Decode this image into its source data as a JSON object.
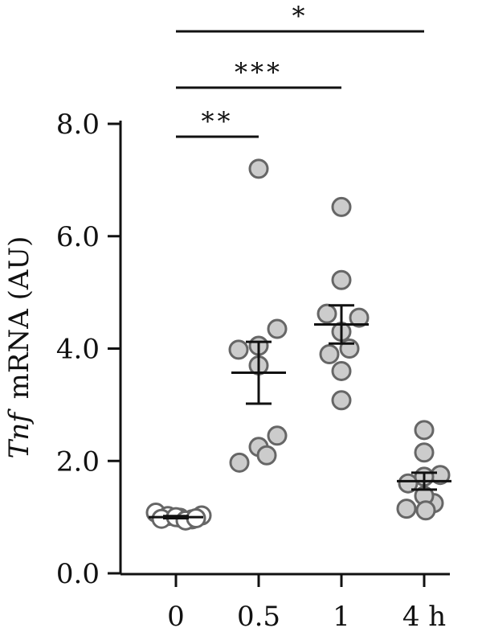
{
  "chart_data": {
    "type": "scatter",
    "ylabel_italic": "Tnf",
    "ylabel_rest": "mRNA (AU)",
    "ylim": [
      0,
      8
    ],
    "y_ticks": [
      "0.0",
      "2.0",
      "4.0",
      "6.0",
      "8.0"
    ],
    "categories": [
      "0",
      "0.5",
      "1",
      "4 h"
    ],
    "series": [
      {
        "category": "0",
        "points": [
          1.08,
          1.02,
          0.99,
          0.96,
          1.03,
          0.97,
          1.0,
          0.94,
          0.98
        ],
        "mean": 1.0,
        "sem": 0.02
      },
      {
        "category": "0.5",
        "points": [
          7.2,
          4.35,
          3.98,
          4.05,
          3.7,
          2.45,
          2.25,
          2.1,
          1.97
        ],
        "mean": 3.57,
        "sem": 0.55
      },
      {
        "category": "1",
        "points": [
          6.52,
          5.22,
          4.62,
          4.55,
          4.3,
          3.9,
          4.0,
          3.6,
          3.08
        ],
        "mean": 4.43,
        "sem": 0.34
      },
      {
        "category": "4 h",
        "points": [
          2.55,
          2.15,
          1.75,
          1.6,
          1.72,
          1.25,
          1.38,
          1.12,
          1.15
        ],
        "mean": 1.64,
        "sem": 0.15
      }
    ],
    "significance": [
      {
        "from": "0",
        "to": "0.5",
        "label": "**"
      },
      {
        "from": "0",
        "to": "1",
        "label": "***"
      },
      {
        "from": "0",
        "to": "4 h",
        "label": "*"
      }
    ],
    "colors": {
      "point_fill_baseline": "#ffffff",
      "point_fill": "#cccccc",
      "point_stroke": "#666666",
      "axis": "#111111"
    }
  }
}
